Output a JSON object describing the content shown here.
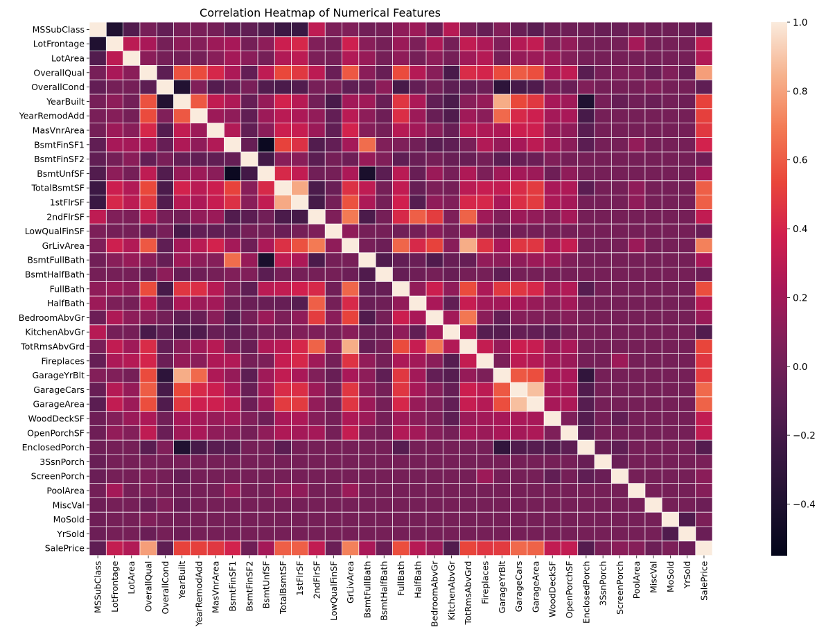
{
  "chart_data": {
    "type": "heatmap",
    "title": "Correlation Heatmap of Numerical Features",
    "xlabel": "",
    "ylabel": "",
    "features": [
      "MSSubClass",
      "LotFrontage",
      "LotArea",
      "OverallQual",
      "OverallCond",
      "YearBuilt",
      "YearRemodAdd",
      "MasVnrArea",
      "BsmtFinSF1",
      "BsmtFinSF2",
      "BsmtUnfSF",
      "TotalBsmtSF",
      "1stFlrSF",
      "2ndFlrSF",
      "LowQualFinSF",
      "GrLivArea",
      "BsmtFullBath",
      "BsmtHalfBath",
      "FullBath",
      "HalfBath",
      "BedroomAbvGr",
      "KitchenAbvGr",
      "TotRmsAbvGrd",
      "Fireplaces",
      "GarageYrBlt",
      "GarageCars",
      "GarageArea",
      "WoodDeckSF",
      "OpenPorchSF",
      "EnclosedPorch",
      "3SsnPorch",
      "ScreenPorch",
      "PoolArea",
      "MiscVal",
      "MoSold",
      "YrSold",
      "SalePrice"
    ],
    "colorbar": {
      "min": -0.55,
      "max": 1.0,
      "ticks": [
        -0.4,
        -0.2,
        0.0,
        0.2,
        0.4,
        0.6,
        0.8,
        1.0
      ],
      "tick_labels": [
        "−0.4",
        "−0.2",
        "0.0",
        "0.2",
        "0.4",
        "0.6",
        "0.8",
        "1.0"
      ]
    },
    "colormap": "rocket",
    "pairs": {
      "MSSubClass|LotFrontage": -0.39,
      "MSSubClass|LotArea": -0.14,
      "MSSubClass|OverallQual": 0.03,
      "MSSubClass|OverallCond": -0.06,
      "MSSubClass|YearBuilt": 0.03,
      "MSSubClass|YearRemodAdd": 0.04,
      "MSSubClass|MasVnrArea": 0.02,
      "MSSubClass|BsmtFinSF1": -0.07,
      "MSSubClass|BsmtFinSF2": -0.07,
      "MSSubClass|BsmtUnfSF": -0.14,
      "MSSubClass|TotalBsmtSF": -0.24,
      "MSSubClass|1stFlrSF": -0.25,
      "MSSubClass|2ndFlrSF": 0.31,
      "MSSubClass|LowQualFinSF": 0.05,
      "MSSubClass|GrLivArea": 0.07,
      "MSSubClass|BsmtFullBath": 0.0,
      "MSSubClass|FullBath": 0.13,
      "MSSubClass|HalfBath": 0.18,
      "MSSubClass|BedroomAbvGr": -0.02,
      "MSSubClass|KitchenAbvGr": 0.28,
      "MSSubClass|TotRmsAbvGrd": 0.04,
      "MSSubClass|Fireplaces": -0.05,
      "MSSubClass|GarageYrBlt": 0.08,
      "MSSubClass|GarageCars": -0.04,
      "MSSubClass|GarageArea": -0.1,
      "MSSubClass|WoodDeckSF": -0.01,
      "MSSubClass|OpenPorchSF": -0.01,
      "MSSubClass|EnclosedPorch": -0.01,
      "MSSubClass|3SsnPorch": -0.04,
      "MSSubClass|ScreenPorch": -0.03,
      "MSSubClass|PoolArea": 0.01,
      "MSSubClass|MiscVal": -0.01,
      "MSSubClass|MoSold": -0.01,
      "MSSubClass|YrSold": -0.02,
      "MSSubClass|SalePrice": -0.08,
      "LotFrontage|LotArea": 0.3,
      "LotFrontage|OverallQual": 0.23,
      "LotFrontage|YearBuilt": 0.12,
      "LotFrontage|YearRemodAdd": 0.09,
      "LotFrontage|MasVnrArea": 0.18,
      "LotFrontage|BsmtFinSF1": 0.22,
      "LotFrontage|BsmtUnfSF": 0.12,
      "LotFrontage|TotalBsmtSF": 0.36,
      "LotFrontage|1stFlrSF": 0.41,
      "LotFrontage|2ndFlrSF": 0.07,
      "LotFrontage|GrLivArea": 0.37,
      "LotFrontage|BsmtFullBath": 0.1,
      "LotFrontage|FullBath": 0.17,
      "LotFrontage|HalfBath": 0.05,
      "LotFrontage|BedroomAbvGr": 0.25,
      "LotFrontage|TotRmsAbvGrd": 0.32,
      "LotFrontage|Fireplaces": 0.24,
      "LotFrontage|GarageYrBlt": 0.07,
      "LotFrontage|GarageCars": 0.27,
      "LotFrontage|GarageArea": 0.32,
      "LotFrontage|WoodDeckSF": 0.08,
      "LotFrontage|OpenPorchSF": 0.14,
      "LotFrontage|PoolArea": 0.21,
      "LotFrontage|SalePrice": 0.33,
      "LotArea|OverallQual": 0.11,
      "LotArea|YearBuilt": 0.01,
      "LotArea|MasVnrArea": 0.1,
      "LotArea|BsmtFinSF1": 0.21,
      "LotArea|BsmtFinSF2": 0.11,
      "LotArea|TotalBsmtSF": 0.26,
      "LotArea|1stFlrSF": 0.3,
      "LotArea|2ndFlrSF": 0.05,
      "LotArea|GrLivArea": 0.26,
      "LotArea|BsmtFullBath": 0.16,
      "LotArea|FullBath": 0.13,
      "LotArea|BedroomAbvGr": 0.12,
      "LotArea|TotRmsAbvGrd": 0.19,
      "LotArea|Fireplaces": 0.27,
      "LotArea|GarageCars": 0.15,
      "LotArea|GarageArea": 0.18,
      "LotArea|WoodDeckSF": 0.17,
      "LotArea|OpenPorchSF": 0.08,
      "LotArea|SalePrice": 0.26,
      "OverallQual|OverallCond": -0.09,
      "OverallQual|YearBuilt": 0.57,
      "OverallQual|YearRemodAdd": 0.55,
      "OverallQual|MasVnrArea": 0.41,
      "OverallQual|BsmtFinSF1": 0.24,
      "OverallQual|BsmtFinSF2": -0.06,
      "OverallQual|BsmtUnfSF": 0.31,
      "OverallQual|TotalBsmtSF": 0.54,
      "OverallQual|1stFlrSF": 0.48,
      "OverallQual|2ndFlrSF": 0.3,
      "OverallQual|LowQualFinSF": -0.03,
      "OverallQual|GrLivArea": 0.59,
      "OverallQual|BsmtFullBath": 0.11,
      "OverallQual|BsmtHalfBath": -0.04,
      "OverallQual|FullBath": 0.55,
      "OverallQual|HalfBath": 0.27,
      "OverallQual|BedroomAbvGr": 0.1,
      "OverallQual|KitchenAbvGr": -0.18,
      "OverallQual|TotRmsAbvGrd": 0.43,
      "OverallQual|Fireplaces": 0.4,
      "OverallQual|GarageYrBlt": 0.55,
      "OverallQual|GarageCars": 0.6,
      "OverallQual|GarageArea": 0.56,
      "OverallQual|WoodDeckSF": 0.24,
      "OverallQual|OpenPorchSF": 0.31,
      "OverallQual|EnclosedPorch": -0.11,
      "OverallQual|3SsnPorch": 0.03,
      "OverallQual|ScreenPorch": 0.06,
      "OverallQual|PoolArea": 0.07,
      "OverallQual|MiscVal": -0.03,
      "OverallQual|MoSold": 0.07,
      "OverallQual|YrSold": -0.03,
      "OverallQual|SalePrice": 0.79,
      "OverallCond|YearBuilt": -0.38,
      "OverallCond|YearRemodAdd": 0.07,
      "OverallCond|MasVnrArea": -0.13,
      "OverallCond|BsmtFinSF1": -0.05,
      "OverallCond|BsmtFinSF2": 0.04,
      "OverallCond|BsmtUnfSF": -0.14,
      "OverallCond|TotalBsmtSF": -0.17,
      "OverallCond|1stFlrSF": -0.14,
      "OverallCond|2ndFlrSF": 0.03,
      "OverallCond|LowQualFinSF": 0.03,
      "OverallCond|GrLivArea": -0.08,
      "OverallCond|BsmtFullBath": -0.05,
      "OverallCond|BsmtHalfBath": 0.12,
      "OverallCond|FullBath": -0.19,
      "OverallCond|HalfBath": -0.06,
      "OverallCond|BedroomAbvGr": 0.01,
      "OverallCond|KitchenAbvGr": -0.09,
      "OverallCond|TotRmsAbvGrd": -0.06,
      "OverallCond|Fireplaces": -0.02,
      "OverallCond|GarageYrBlt": -0.32,
      "OverallCond|GarageCars": -0.19,
      "OverallCond|GarageArea": -0.15,
      "OverallCond|WoodDeckSF": -0.0,
      "OverallCond|OpenPorchSF": -0.03,
      "OverallCond|EnclosedPorch": 0.07,
      "OverallCond|MiscVal": 0.07,
      "OverallCond|SalePrice": -0.08,
      "YearBuilt|YearRemodAdd": 0.59,
      "YearBuilt|MasVnrArea": 0.32,
      "YearBuilt|BsmtFinSF1": 0.25,
      "YearBuilt|BsmtFinSF2": -0.05,
      "YearBuilt|BsmtUnfSF": 0.15,
      "YearBuilt|TotalBsmtSF": 0.39,
      "YearBuilt|1stFlrSF": 0.28,
      "YearBuilt|2ndFlrSF": 0.01,
      "YearBuilt|LowQualFinSF": -0.18,
      "YearBuilt|GrLivArea": 0.2,
      "YearBuilt|BsmtFullBath": 0.19,
      "YearBuilt|BsmtHalfBath": -0.04,
      "YearBuilt|FullBath": 0.47,
      "YearBuilt|HalfBath": 0.24,
      "YearBuilt|BedroomAbvGr": -0.07,
      "YearBuilt|KitchenAbvGr": -0.17,
      "YearBuilt|TotRmsAbvGrd": 0.1,
      "YearBuilt|Fireplaces": 0.15,
      "YearBuilt|GarageYrBlt": 0.83,
      "YearBuilt|GarageCars": 0.54,
      "YearBuilt|GarageArea": 0.48,
      "YearBuilt|WoodDeckSF": 0.22,
      "YearBuilt|OpenPorchSF": 0.19,
      "YearBuilt|EnclosedPorch": -0.39,
      "YearBuilt|3SsnPorch": 0.03,
      "YearBuilt|ScreenPorch": -0.05,
      "YearBuilt|PoolArea": 0.0,
      "YearBuilt|MiscVal": -0.03,
      "YearBuilt|MoSold": 0.01,
      "YearBuilt|YrSold": -0.01,
      "YearBuilt|SalePrice": 0.52,
      "YearRemodAdd|MasVnrArea": 0.18,
      "YearRemodAdd|BsmtFinSF1": 0.13,
      "YearRemodAdd|BsmtFinSF2": -0.07,
      "YearRemodAdd|BsmtUnfSF": 0.18,
      "YearRemodAdd|TotalBsmtSF": 0.29,
      "YearRemodAdd|1stFlrSF": 0.24,
      "YearRemodAdd|2ndFlrSF": 0.14,
      "YearRemodAdd|LowQualFinSF": -0.06,
      "YearRemodAdd|GrLivArea": 0.29,
      "YearRemodAdd|BsmtFullBath": 0.12,
      "YearRemodAdd|BsmtHalfBath": -0.01,
      "YearRemodAdd|FullBath": 0.44,
      "YearRemodAdd|HalfBath": 0.18,
      "YearRemodAdd|BedroomAbvGr": -0.04,
      "YearRemodAdd|KitchenAbvGr": -0.15,
      "YearRemodAdd|TotRmsAbvGrd": 0.19,
      "YearRemodAdd|Fireplaces": 0.11,
      "YearRemodAdd|GarageYrBlt": 0.64,
      "YearRemodAdd|GarageCars": 0.42,
      "YearRemodAdd|GarageArea": 0.37,
      "YearRemodAdd|WoodDeckSF": 0.21,
      "YearRemodAdd|OpenPorchSF": 0.23,
      "YearRemodAdd|EnclosedPorch": -0.19,
      "YearRemodAdd|SalePrice": 0.51,
      "MasVnrArea|BsmtFinSF1": 0.26,
      "MasVnrArea|BsmtFinSF2": -0.07,
      "MasVnrArea|BsmtUnfSF": 0.11,
      "MasVnrArea|TotalBsmtSF": 0.36,
      "MasVnrArea|1stFlrSF": 0.34,
      "MasVnrArea|2ndFlrSF": 0.17,
      "MasVnrArea|LowQualFinSF": -0.07,
      "MasVnrArea|GrLivArea": 0.39,
      "MasVnrArea|BsmtFullBath": 0.09,
      "MasVnrArea|FullBath": 0.28,
      "MasVnrArea|HalfBath": 0.2,
      "MasVnrArea|BedroomAbvGr": 0.1,
      "MasVnrArea|KitchenAbvGr": -0.04,
      "MasVnrArea|TotRmsAbvGrd": 0.28,
      "MasVnrArea|Fireplaces": 0.25,
      "MasVnrArea|GarageYrBlt": 0.25,
      "MasVnrArea|GarageCars": 0.36,
      "MasVnrArea|GarageArea": 0.37,
      "MasVnrArea|WoodDeckSF": 0.16,
      "MasVnrArea|OpenPorchSF": 0.13,
      "MasVnrArea|EnclosedPorch": -0.11,
      "MasVnrArea|SalePrice": 0.48,
      "BsmtFinSF1|BsmtFinSF2": -0.05,
      "BsmtFinSF1|BsmtUnfSF": -0.5,
      "BsmtFinSF1|TotalBsmtSF": 0.52,
      "BsmtFinSF1|1stFlrSF": 0.45,
      "BsmtFinSF1|2ndFlrSF": -0.14,
      "BsmtFinSF1|LowQualFinSF": -0.06,
      "BsmtFinSF1|GrLivArea": 0.21,
      "BsmtFinSF1|BsmtFullBath": 0.65,
      "BsmtFinSF1|BsmtHalfBath": 0.07,
      "BsmtFinSF1|FullBath": 0.06,
      "BsmtFinSF1|HalfBath": 0.0,
      "BsmtFinSF1|BedroomAbvGr": -0.11,
      "BsmtFinSF1|KitchenAbvGr": -0.08,
      "BsmtFinSF1|TotRmsAbvGrd": 0.04,
      "BsmtFinSF1|Fireplaces": 0.26,
      "BsmtFinSF1|GarageYrBlt": 0.15,
      "BsmtFinSF1|GarageCars": 0.22,
      "BsmtFinSF1|GarageArea": 0.3,
      "BsmtFinSF1|WoodDeckSF": 0.2,
      "BsmtFinSF1|OpenPorchSF": 0.11,
      "BsmtFinSF1|EnclosedPorch": -0.1,
      "BsmtFinSF1|PoolArea": 0.14,
      "BsmtFinSF1|SalePrice": 0.39,
      "BsmtFinSF2|BsmtUnfSF": -0.21,
      "BsmtFinSF2|TotalBsmtSF": 0.1,
      "BsmtFinSF2|1stFlrSF": 0.1,
      "BsmtFinSF2|2ndFlrSF": -0.1,
      "BsmtFinSF2|GrLivArea": -0.01,
      "BsmtFinSF2|BsmtFullBath": 0.16,
      "BsmtFinSF2|BsmtHalfBath": 0.07,
      "BsmtFinSF2|FullBath": -0.08,
      "BsmtFinSF2|HalfBath": -0.03,
      "BsmtFinSF2|KitchenAbvGr": -0.04,
      "BsmtFinSF2|TotRmsAbvGrd": -0.04,
      "BsmtFinSF2|GarageYrBlt": -0.09,
      "BsmtFinSF2|GarageCars": -0.04,
      "BsmtFinSF2|GarageArea": -0.02,
      "BsmtFinSF2|WoodDeckSF": 0.07,
      "BsmtFinSF2|SalePrice": -0.01,
      "BsmtUnfSF|TotalBsmtSF": 0.42,
      "BsmtUnfSF|1stFlrSF": 0.32,
      "BsmtUnfSF|2ndFlrSF": 0.0,
      "BsmtUnfSF|GrLivArea": 0.24,
      "BsmtUnfSF|BsmtFullBath": -0.42,
      "BsmtUnfSF|BsmtHalfBath": -0.1,
      "BsmtUnfSF|FullBath": 0.29,
      "BsmtUnfSF|HalfBath": -0.04,
      "BsmtUnfSF|BedroomAbvGr": 0.17,
      "BsmtUnfSF|KitchenAbvGr": 0.03,
      "BsmtUnfSF|TotRmsAbvGrd": 0.25,
      "BsmtUnfSF|Fireplaces": 0.05,
      "BsmtUnfSF|GarageYrBlt": 0.19,
      "BsmtUnfSF|GarageCars": 0.21,
      "BsmtUnfSF|GarageArea": 0.18,
      "BsmtUnfSF|WoodDeckSF": -0.01,
      "BsmtUnfSF|OpenPorchSF": 0.13,
      "BsmtUnfSF|SalePrice": 0.21,
      "TotalBsmtSF|1stFlrSF": 0.82,
      "TotalBsmtSF|2ndFlrSF": -0.17,
      "TotalBsmtSF|LowQualFinSF": -0.03,
      "TotalBsmtSF|GrLivArea": 0.45,
      "TotalBsmtSF|BsmtFullBath": 0.31,
      "TotalBsmtSF|FullBath": 0.32,
      "TotalBsmtSF|HalfBath": -0.05,
      "TotalBsmtSF|BedroomAbvGr": 0.05,
      "TotalBsmtSF|TotRmsAbvGrd": 0.29,
      "TotalBsmtSF|Fireplaces": 0.34,
      "TotalBsmtSF|GarageYrBlt": 0.32,
      "TotalBsmtSF|GarageCars": 0.43,
      "TotalBsmtSF|GarageArea": 0.49,
      "TotalBsmtSF|WoodDeckSF": 0.23,
      "TotalBsmtSF|OpenPorchSF": 0.25,
      "TotalBsmtSF|EnclosedPorch": -0.1,
      "TotalBsmtSF|PoolArea": 0.13,
      "TotalBsmtSF|SalePrice": 0.61,
      "1stFlrSF|2ndFlrSF": -0.2,
      "1stFlrSF|GrLivArea": 0.57,
      "1stFlrSF|BsmtFullBath": 0.24,
      "1stFlrSF|FullBath": 0.38,
      "1stFlrSF|HalfBath": -0.12,
      "1stFlrSF|BedroomAbvGr": 0.13,
      "1stFlrSF|KitchenAbvGr": 0.07,
      "1stFlrSF|TotRmsAbvGrd": 0.41,
      "1stFlrSF|Fireplaces": 0.41,
      "1stFlrSF|GarageYrBlt": 0.23,
      "1stFlrSF|GarageCars": 0.44,
      "1stFlrSF|GarageArea": 0.49,
      "1stFlrSF|WoodDeckSF": 0.24,
      "1stFlrSF|OpenPorchSF": 0.21,
      "1stFlrSF|PoolArea": 0.13,
      "1stFlrSF|SalePrice": 0.61,
      "2ndFlrSF|LowQualFinSF": 0.06,
      "2ndFlrSF|GrLivArea": 0.69,
      "2ndFlrSF|BsmtFullBath": -0.17,
      "2ndFlrSF|FullBath": 0.42,
      "2ndFlrSF|HalfBath": 0.61,
      "2ndFlrSF|BedroomAbvGr": 0.5,
      "2ndFlrSF|KitchenAbvGr": 0.06,
      "2ndFlrSF|TotRmsAbvGrd": 0.62,
      "2ndFlrSF|Fireplaces": 0.19,
      "2ndFlrSF|GarageYrBlt": 0.07,
      "2ndFlrSF|GarageCars": 0.18,
      "2ndFlrSF|GarageArea": 0.14,
      "2ndFlrSF|WoodDeckSF": 0.09,
      "2ndFlrSF|OpenPorchSF": 0.21,
      "2ndFlrSF|SalePrice": 0.32,
      "LowQualFinSF|GrLivArea": 0.13,
      "LowQualFinSF|FullBath": -0.0,
      "LowQualFinSF|BedroomAbvGr": 0.11,
      "LowQualFinSF|TotRmsAbvGrd": 0.13,
      "LowQualFinSF|GarageYrBlt": -0.04,
      "LowQualFinSF|SalePrice": -0.03,
      "GrLivArea|BsmtFullBath": 0.03,
      "GrLivArea|BsmtHalfBath": -0.02,
      "GrLivArea|FullBath": 0.63,
      "GrLivArea|HalfBath": 0.42,
      "GrLivArea|BedroomAbvGr": 0.52,
      "GrLivArea|KitchenAbvGr": 0.1,
      "GrLivArea|TotRmsAbvGrd": 0.83,
      "GrLivArea|Fireplaces": 0.46,
      "GrLivArea|GarageYrBlt": 0.23,
      "GrLivArea|GarageCars": 0.47,
      "GrLivArea|GarageArea": 0.47,
      "GrLivArea|WoodDeckSF": 0.25,
      "GrLivArea|OpenPorchSF": 0.33,
      "GrLivArea|PoolArea": 0.17,
      "GrLivArea|SalePrice": 0.71,
      "BsmtFullBath|BsmtHalfBath": -0.15,
      "BsmtFullBath|FullBath": -0.06,
      "BsmtFullBath|HalfBath": -0.03,
      "BsmtFullBath|BedroomAbvGr": -0.15,
      "BsmtFullBath|KitchenAbvGr": -0.04,
      "BsmtFullBath|TotRmsAbvGrd": -0.05,
      "BsmtFullBath|Fireplaces": 0.14,
      "BsmtFullBath|GarageYrBlt": 0.12,
      "BsmtFullBath|GarageCars": 0.13,
      "BsmtFullBath|GarageArea": 0.18,
      "BsmtFullBath|WoodDeckSF": 0.18,
      "BsmtFullBath|OpenPorchSF": 0.07,
      "BsmtFullBath|SalePrice": 0.23,
      "BsmtHalfBath|FullBath": -0.05,
      "BsmtHalfBath|HalfBath": -0.01,
      "BsmtHalfBath|KitchenAbvGr": -0.04,
      "BsmtHalfBath|GarageYrBlt": -0.08,
      "BsmtHalfBath|SalePrice": -0.02,
      "FullBath|HalfBath": 0.14,
      "FullBath|BedroomAbvGr": 0.36,
      "FullBath|KitchenAbvGr": 0.13,
      "FullBath|TotRmsAbvGrd": 0.55,
      "FullBath|Fireplaces": 0.24,
      "FullBath|GarageYrBlt": 0.48,
      "FullBath|GarageCars": 0.47,
      "FullBath|GarageArea": 0.41,
      "FullBath|WoodDeckSF": 0.19,
      "FullBath|OpenPorchSF": 0.26,
      "FullBath|EnclosedPorch": -0.12,
      "FullBath|SalePrice": 0.56,
      "HalfBath|BedroomAbvGr": 0.23,
      "HalfBath|KitchenAbvGr": -0.07,
      "HalfBath|TotRmsAbvGrd": 0.34,
      "HalfBath|Fireplaces": 0.2,
      "HalfBath|GarageYrBlt": 0.2,
      "HalfBath|GarageCars": 0.22,
      "HalfBath|GarageArea": 0.16,
      "HalfBath|WoodDeckSF": 0.11,
      "HalfBath|OpenPorchSF": 0.2,
      "HalfBath|SalePrice": 0.28,
      "BedroomAbvGr|KitchenAbvGr": 0.2,
      "BedroomAbvGr|TotRmsAbvGrd": 0.68,
      "BedroomAbvGr|Fireplaces": 0.11,
      "BedroomAbvGr|GarageYrBlt": -0.06,
      "BedroomAbvGr|GarageCars": 0.09,
      "BedroomAbvGr|GarageArea": 0.07,
      "BedroomAbvGr|WoodDeckSF": 0.05,
      "BedroomAbvGr|OpenPorchSF": 0.09,
      "BedroomAbvGr|SalePrice": 0.17,
      "KitchenAbvGr|TotRmsAbvGrd": 0.26,
      "KitchenAbvGr|Fireplaces": -0.12,
      "KitchenAbvGr|GarageYrBlt": -0.12,
      "KitchenAbvGr|GarageCars": -0.05,
      "KitchenAbvGr|GarageArea": -0.06,
      "KitchenAbvGr|WoodDeckSF": -0.09,
      "KitchenAbvGr|SalePrice": -0.14,
      "TotRmsAbvGrd|Fireplaces": 0.33,
      "TotRmsAbvGrd|GarageYrBlt": 0.15,
      "TotRmsAbvGrd|GarageCars": 0.36,
      "TotRmsAbvGrd|GarageArea": 0.34,
      "TotRmsAbvGrd|WoodDeckSF": 0.17,
      "TotRmsAbvGrd|OpenPorchSF": 0.23,
      "TotRmsAbvGrd|SalePrice": 0.53,
      "Fireplaces|GarageYrBlt": 0.05,
      "Fireplaces|GarageCars": 0.3,
      "Fireplaces|GarageArea": 0.27,
      "Fireplaces|WoodDeckSF": 0.2,
      "Fireplaces|OpenPorchSF": 0.17,
      "Fireplaces|ScreenPorch": 0.18,
      "Fireplaces|SalePrice": 0.47,
      "GarageYrBlt|GarageCars": 0.59,
      "GarageYrBlt|GarageArea": 0.56,
      "GarageYrBlt|WoodDeckSF": 0.22,
      "GarageYrBlt|OpenPorchSF": 0.23,
      "GarageYrBlt|EnclosedPorch": -0.3,
      "GarageYrBlt|SalePrice": 0.49,
      "GarageCars|GarageArea": 0.88,
      "GarageCars|WoodDeckSF": 0.23,
      "GarageCars|OpenPorchSF": 0.21,
      "GarageCars|EnclosedPorch": -0.15,
      "GarageCars|SalePrice": 0.64,
      "GarageArea|WoodDeckSF": 0.22,
      "GarageArea|OpenPorchSF": 0.24,
      "GarageArea|EnclosedPorch": -0.12,
      "GarageArea|SalePrice": 0.62,
      "WoodDeckSF|OpenPorchSF": 0.06,
      "WoodDeckSF|EnclosedPorch": -0.13,
      "WoodDeckSF|ScreenPorch": -0.07,
      "WoodDeckSF|SalePrice": 0.32,
      "OpenPorchSF|EnclosedPorch": -0.09,
      "OpenPorchSF|SalePrice": 0.32,
      "EnclosedPorch|3SsnPorch": -0.04,
      "EnclosedPorch|ScreenPorch": -0.08,
      "EnclosedPorch|SalePrice": -0.13,
      "3SsnPorch|ScreenPorch": -0.03,
      "3SsnPorch|SalePrice": 0.04,
      "ScreenPorch|SalePrice": 0.11,
      "PoolArea|SalePrice": 0.09,
      "PoolArea|MiscVal": 0.03,
      "MiscVal|SalePrice": -0.02,
      "MoSold|YrSold": -0.15,
      "MoSold|SalePrice": 0.05,
      "YrSold|SalePrice": -0.03
    }
  }
}
